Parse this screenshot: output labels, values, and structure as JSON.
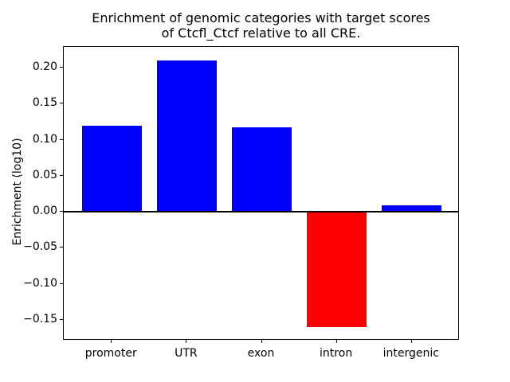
{
  "figure": {
    "background": "#ffffff",
    "text_color": "#000000"
  },
  "chart_data": {
    "type": "bar",
    "title": "Enrichment of genomic categories with target scores\nof Ctcfl_Ctcf relative to all CRE.",
    "ylabel": "Enrichment (log10)",
    "xlabel": "",
    "categories": [
      "promoter",
      "UTR",
      "exon",
      "intron",
      "intergenic"
    ],
    "values": [
      0.119,
      0.21,
      0.117,
      -0.16,
      0.009
    ],
    "bar_colors": [
      "#0000ff",
      "#0000ff",
      "#0000ff",
      "#ff0000",
      "#0000ff"
    ],
    "positive_color": "#0000ff",
    "negative_color": "#ff0000",
    "yticks": [
      {
        "value": 0.2,
        "label": "0.20"
      },
      {
        "value": 0.15,
        "label": "0.15"
      },
      {
        "value": 0.1,
        "label": "0.10"
      },
      {
        "value": 0.05,
        "label": "0.05"
      },
      {
        "value": 0.0,
        "label": "0.00"
      },
      {
        "value": -0.05,
        "label": "−0.05"
      },
      {
        "value": -0.1,
        "label": "−0.10"
      },
      {
        "value": -0.15,
        "label": "−0.15"
      }
    ],
    "ylim": [
      -0.1785,
      0.2285
    ],
    "xlim": [
      -0.64,
      4.64
    ],
    "bar_width": 0.8,
    "zero_line": true,
    "grid": false,
    "legend": null
  }
}
